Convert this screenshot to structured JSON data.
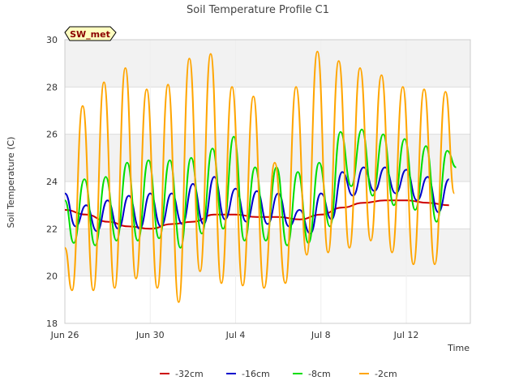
{
  "chart_data": {
    "type": "line",
    "title": "Soil Temperature Profile C1",
    "xlabel": "Time",
    "ylabel": "Soil Temperature (C)",
    "badge": "SW_met",
    "xlim": [
      "2023-06-26",
      "2023-07-15"
    ],
    "ylim": [
      18,
      30
    ],
    "yticks": [
      18,
      20,
      22,
      24,
      26,
      28,
      30
    ],
    "xticks": [
      {
        "date": "2023-06-26",
        "label": "Jun 26"
      },
      {
        "date": "2023-06-30",
        "label": "Jun 30"
      },
      {
        "date": "2023-07-04",
        "label": "Jul 4"
      },
      {
        "date": "2023-07-08",
        "label": "Jul 8"
      },
      {
        "date": "2023-07-12",
        "label": "Jul 12"
      }
    ],
    "grid": true,
    "legend_position": "bottom",
    "series": [
      {
        "name": "-32cm",
        "color": "#cc0000",
        "x": [
          "2023-06-26",
          "2023-06-27",
          "2023-06-28",
          "2023-06-29",
          "2023-06-30",
          "2023-07-01",
          "2023-07-02",
          "2023-07-03",
          "2023-07-04",
          "2023-07-05",
          "2023-07-06",
          "2023-07-07",
          "2023-07-08",
          "2023-07-09",
          "2023-07-10",
          "2023-07-11",
          "2023-07-12",
          "2023-07-13",
          "2023-07-14"
        ],
        "y": [
          22.8,
          22.6,
          22.3,
          22.1,
          22.0,
          22.2,
          22.3,
          22.6,
          22.6,
          22.5,
          22.5,
          22.4,
          22.6,
          22.9,
          23.1,
          23.2,
          23.2,
          23.1,
          23.0
        ]
      },
      {
        "name": "-16cm",
        "color": "#0000cc",
        "x": [
          "2023-06-26T00:00",
          "2023-06-26T12:00",
          "2023-06-27T00:00",
          "2023-06-27T12:00",
          "2023-06-28T00:00",
          "2023-06-28T12:00",
          "2023-06-29T00:00",
          "2023-06-29T12:00",
          "2023-06-30T00:00",
          "2023-06-30T12:00",
          "2023-07-01T00:00",
          "2023-07-01T12:00",
          "2023-07-02T00:00",
          "2023-07-02T12:00",
          "2023-07-03T00:00",
          "2023-07-03T12:00",
          "2023-07-04T00:00",
          "2023-07-04T12:00",
          "2023-07-05T00:00",
          "2023-07-05T12:00",
          "2023-07-06T00:00",
          "2023-07-06T12:00",
          "2023-07-07T00:00",
          "2023-07-07T12:00",
          "2023-07-08T00:00",
          "2023-07-08T12:00",
          "2023-07-09T00:00",
          "2023-07-09T12:00",
          "2023-07-10T00:00",
          "2023-07-10T12:00",
          "2023-07-11T00:00",
          "2023-07-11T12:00",
          "2023-07-12T00:00",
          "2023-07-12T12:00",
          "2023-07-13T00:00",
          "2023-07-13T12:00",
          "2023-07-14T00:00"
        ],
        "y": [
          23.5,
          22.1,
          23.0,
          21.9,
          23.2,
          22.0,
          23.4,
          22.0,
          23.5,
          22.1,
          23.5,
          22.2,
          23.9,
          22.2,
          24.2,
          22.4,
          23.7,
          22.3,
          23.6,
          22.2,
          23.5,
          22.1,
          22.8,
          21.8,
          23.5,
          22.4,
          24.4,
          23.4,
          24.6,
          23.6,
          24.6,
          23.5,
          24.5,
          23.2,
          24.2,
          22.7,
          24.1
        ]
      },
      {
        "name": "-8cm",
        "color": "#00dd00",
        "x": [
          "2023-06-26T00:00",
          "2023-06-26T10:00",
          "2023-06-26T22:00",
          "2023-06-27T10:00",
          "2023-06-27T22:00",
          "2023-06-28T10:00",
          "2023-06-28T22:00",
          "2023-06-29T10:00",
          "2023-06-29T22:00",
          "2023-06-30T10:00",
          "2023-06-30T22:00",
          "2023-07-01T10:00",
          "2023-07-01T22:00",
          "2023-07-02T10:00",
          "2023-07-02T22:00",
          "2023-07-03T10:00",
          "2023-07-03T22:00",
          "2023-07-04T10:00",
          "2023-07-04T22:00",
          "2023-07-05T10:00",
          "2023-07-05T22:00",
          "2023-07-06T10:00",
          "2023-07-06T22:00",
          "2023-07-07T10:00",
          "2023-07-07T22:00",
          "2023-07-08T10:00",
          "2023-07-08T22:00",
          "2023-07-09T10:00",
          "2023-07-09T22:00",
          "2023-07-10T10:00",
          "2023-07-10T22:00",
          "2023-07-11T10:00",
          "2023-07-11T22:00",
          "2023-07-12T10:00",
          "2023-07-12T22:00",
          "2023-07-13T10:00",
          "2023-07-13T22:00",
          "2023-07-14T08:00"
        ],
        "y": [
          23.2,
          21.4,
          24.1,
          21.3,
          24.2,
          21.5,
          24.8,
          21.5,
          24.9,
          21.6,
          24.9,
          21.2,
          25.0,
          21.8,
          25.4,
          22.0,
          25.9,
          21.5,
          24.6,
          21.5,
          24.6,
          21.3,
          24.4,
          21.4,
          24.8,
          22.1,
          26.1,
          23.8,
          26.2,
          23.4,
          26.0,
          23.0,
          25.8,
          22.8,
          25.5,
          22.3,
          25.3,
          24.6
        ]
      },
      {
        "name": "-2cm",
        "color": "#ffa500",
        "x": [
          "2023-06-26T00:00",
          "2023-06-26T08:00",
          "2023-06-26T20:00",
          "2023-06-27T08:00",
          "2023-06-27T20:00",
          "2023-06-28T08:00",
          "2023-06-28T20:00",
          "2023-06-29T08:00",
          "2023-06-29T20:00",
          "2023-06-30T08:00",
          "2023-06-30T20:00",
          "2023-07-01T08:00",
          "2023-07-01T20:00",
          "2023-07-02T08:00",
          "2023-07-02T20:00",
          "2023-07-03T08:00",
          "2023-07-03T20:00",
          "2023-07-04T08:00",
          "2023-07-04T20:00",
          "2023-07-05T08:00",
          "2023-07-05T20:00",
          "2023-07-06T08:00",
          "2023-07-06T20:00",
          "2023-07-07T08:00",
          "2023-07-07T20:00",
          "2023-07-08T08:00",
          "2023-07-08T20:00",
          "2023-07-09T08:00",
          "2023-07-09T20:00",
          "2023-07-10T08:00",
          "2023-07-10T20:00",
          "2023-07-11T08:00",
          "2023-07-11T20:00",
          "2023-07-12T08:00",
          "2023-07-12T20:00",
          "2023-07-13T08:00",
          "2023-07-13T20:00",
          "2023-07-14T06:00"
        ],
        "y": [
          21.2,
          19.4,
          27.2,
          19.4,
          28.2,
          19.5,
          28.8,
          19.9,
          27.9,
          19.5,
          28.1,
          18.9,
          29.2,
          20.2,
          29.4,
          19.7,
          28.0,
          19.6,
          27.6,
          19.5,
          24.8,
          19.7,
          28.0,
          20.9,
          29.5,
          21.0,
          29.1,
          21.2,
          28.8,
          21.5,
          28.5,
          21.0,
          28.0,
          20.5,
          27.9,
          20.5,
          27.8,
          23.5
        ]
      }
    ]
  }
}
